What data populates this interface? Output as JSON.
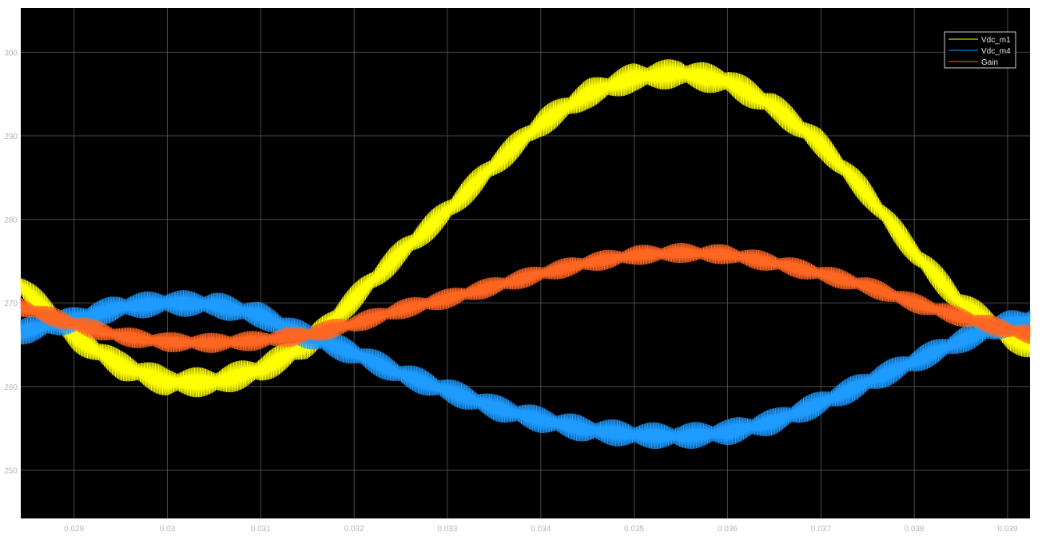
{
  "chart_data": {
    "type": "line",
    "title": "",
    "xlabel": "",
    "ylabel": "",
    "xlim": [
      0.02843,
      0.03924
    ],
    "ylim": [
      244.2,
      305.3
    ],
    "x_ticks": [
      0.029,
      0.03,
      0.031,
      0.032,
      0.033,
      0.034,
      0.035,
      0.036,
      0.037,
      0.038,
      0.039
    ],
    "x_tick_labels": [
      "0.029",
      "0.03",
      "0.031",
      "0.032",
      "0.033",
      "0.034",
      "0.035",
      "0.036",
      "0.037",
      "0.038",
      "0.039"
    ],
    "y_ticks": [
      250,
      260,
      270,
      280,
      290,
      300
    ],
    "y_tick_labels": [
      "250",
      "260",
      "270",
      "280",
      "290",
      "300"
    ],
    "grid": true,
    "legend_position": "top-right",
    "background": "#000000",
    "ripple_note_amplitude": {
      "Vdc_m1": 1.8,
      "Vdc_m4": 1.6,
      "Gain": 1.2
    },
    "series": [
      {
        "name": "Vdc_m1",
        "color": "#ffff00",
        "ripple": 1.8,
        "x": [
          0.02843,
          0.029,
          0.0295,
          0.03,
          0.0305,
          0.031,
          0.0315,
          0.032,
          0.0325,
          0.033,
          0.0335,
          0.034,
          0.0345,
          0.035,
          0.0355,
          0.036,
          0.0365,
          0.037,
          0.0375,
          0.038,
          0.0385,
          0.039,
          0.03924
        ],
        "y": [
          272,
          266,
          262.5,
          260.5,
          260.5,
          262,
          265,
          270.5,
          276,
          281,
          286.5,
          291.5,
          295,
          297,
          297.5,
          296.5,
          293.5,
          289,
          283,
          276,
          270,
          266,
          265
        ]
      },
      {
        "name": "Vdc_m4",
        "color": "#1e9bff",
        "ripple": 1.6,
        "x": [
          0.02843,
          0.029,
          0.0295,
          0.03,
          0.0305,
          0.031,
          0.0315,
          0.032,
          0.0325,
          0.033,
          0.0335,
          0.034,
          0.0345,
          0.035,
          0.0355,
          0.036,
          0.0365,
          0.037,
          0.0375,
          0.038,
          0.0385,
          0.039,
          0.03924
        ],
        "y": [
          266.5,
          268,
          269.5,
          270,
          269.8,
          268.5,
          266,
          264,
          261.5,
          259.5,
          257.5,
          256,
          254.8,
          254.2,
          254,
          254.5,
          255.8,
          258,
          260.5,
          263,
          265.5,
          267.5,
          268
        ]
      },
      {
        "name": "Gain",
        "color": "#ff6622",
        "ripple": 1.2,
        "x": [
          0.02843,
          0.029,
          0.0295,
          0.03,
          0.0305,
          0.031,
          0.0315,
          0.032,
          0.0325,
          0.033,
          0.0335,
          0.034,
          0.0345,
          0.035,
          0.0355,
          0.036,
          0.0365,
          0.037,
          0.0375,
          0.038,
          0.0385,
          0.039,
          0.03924
        ],
        "y": [
          269.5,
          267.5,
          266,
          265.3,
          265.2,
          265.5,
          266.2,
          267.5,
          269.2,
          270.5,
          272,
          273.5,
          274.8,
          275.7,
          276,
          275.8,
          274.8,
          273.5,
          272,
          270,
          268.3,
          266.8,
          266.2
        ]
      }
    ]
  }
}
